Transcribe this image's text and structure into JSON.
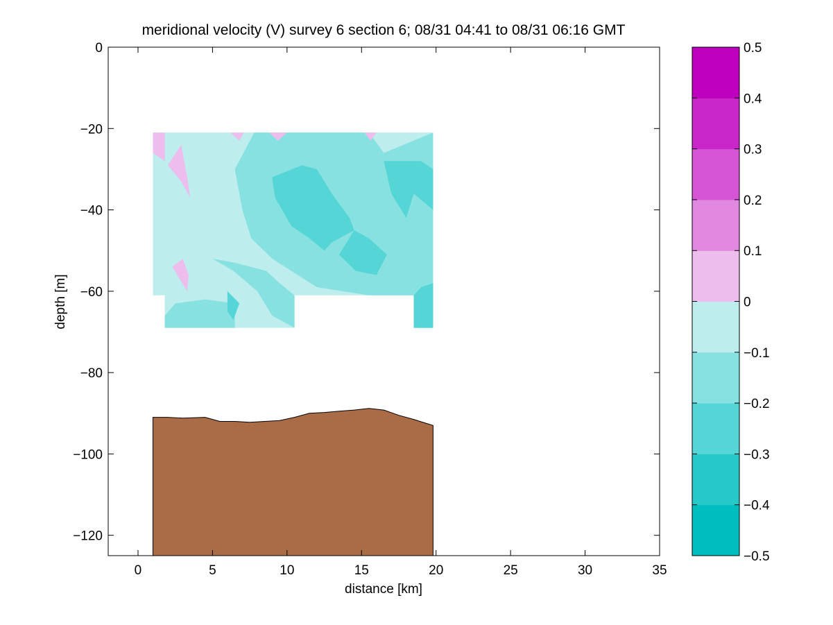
{
  "chart_data": [
    {
      "type": "contour",
      "title": "meridional velocity (V) survey 6 section 6; 08/31 04:41 to 08/31 06:16 GMT",
      "xlabel": "distance [km]",
      "ylabel": "depth [m]",
      "xlim": [
        -2,
        35
      ],
      "ylim": [
        -125,
        0
      ],
      "xticks": [
        0,
        5,
        10,
        15,
        20,
        25,
        30,
        35
      ],
      "yticks": [
        0,
        -20,
        -40,
        -60,
        -80,
        -100,
        -120
      ],
      "data_extent": {
        "x": [
          1.0,
          19.8
        ],
        "y": [
          -69,
          -21
        ]
      },
      "contour_levels": [
        -0.5,
        -0.4,
        -0.3,
        -0.2,
        -0.1,
        0,
        0.1,
        0.2,
        0.3,
        0.4,
        0.5
      ],
      "regions": [
        {
          "name": "velocity-domain",
          "level": "-0.1 to 0",
          "polygon": [
            [
              1.0,
              -21
            ],
            [
              19.8,
              -21
            ],
            [
              19.8,
              -69
            ],
            [
              18.5,
              -69
            ],
            [
              18.5,
              -61
            ],
            [
              10.5,
              -61
            ],
            [
              10.5,
              -69
            ],
            [
              1.8,
              -69
            ],
            [
              1.8,
              -61
            ],
            [
              1.0,
              -61
            ]
          ]
        },
        {
          "name": "band-a",
          "level": "-0.2 to -0.1",
          "polygon": [
            [
              7.8,
              -21
            ],
            [
              15.5,
              -21
            ],
            [
              16.5,
              -26
            ],
            [
              19.8,
              -21
            ],
            [
              19.8,
              -69
            ],
            [
              18.5,
              -69
            ],
            [
              18.5,
              -61
            ],
            [
              15.5,
              -61
            ],
            [
              12.0,
              -59
            ],
            [
              9.0,
              -52
            ],
            [
              7.6,
              -47
            ],
            [
              7.0,
              -40
            ],
            [
              6.5,
              -30
            ]
          ]
        },
        {
          "name": "band-b",
          "level": "-0.2 to -0.1",
          "polygon": [
            [
              5.0,
              -52
            ],
            [
              6.4,
              -55
            ],
            [
              8.0,
              -60
            ],
            [
              9.0,
              -66
            ],
            [
              10.5,
              -69
            ],
            [
              10.5,
              -61
            ],
            [
              9.5,
              -58
            ],
            [
              8.6,
              -55
            ],
            [
              6.5,
              -53
            ]
          ]
        },
        {
          "name": "band-c",
          "level": "-0.2 to -0.1",
          "polygon": [
            [
              1.8,
              -66
            ],
            [
              2.5,
              -63
            ],
            [
              4.5,
              -62
            ],
            [
              6.5,
              -63
            ],
            [
              6.5,
              -69
            ],
            [
              1.8,
              -69
            ]
          ]
        },
        {
          "name": "core-a",
          "level": "-0.3 to -0.2",
          "polygon": [
            [
              9.0,
              -32
            ],
            [
              11.0,
              -29
            ],
            [
              12.0,
              -30
            ],
            [
              13.0,
              -36
            ],
            [
              14.2,
              -42
            ],
            [
              14.5,
              -45
            ],
            [
              13.0,
              -48
            ],
            [
              12.5,
              -50
            ],
            [
              11.5,
              -47
            ],
            [
              10.3,
              -44
            ],
            [
              9.2,
              -37
            ]
          ]
        },
        {
          "name": "core-b",
          "level": "-0.3 to -0.2",
          "polygon": [
            [
              14.5,
              -45
            ],
            [
              15.5,
              -47
            ],
            [
              16.7,
              -51
            ],
            [
              16.0,
              -56
            ],
            [
              14.6,
              -55
            ],
            [
              13.5,
              -51
            ]
          ]
        },
        {
          "name": "core-c",
          "level": "-0.3 to -0.2",
          "polygon": [
            [
              16.5,
              -28
            ],
            [
              19.0,
              -28
            ],
            [
              19.8,
              -30
            ],
            [
              19.8,
              -40
            ],
            [
              18.5,
              -36
            ],
            [
              18.0,
              -42
            ],
            [
              17.0,
              -36
            ]
          ]
        },
        {
          "name": "core-d",
          "level": "-0.3 to -0.2",
          "polygon": [
            [
              18.5,
              -61
            ],
            [
              19.0,
              -59
            ],
            [
              19.8,
              -58
            ],
            [
              19.8,
              -69
            ],
            [
              18.5,
              -69
            ]
          ]
        },
        {
          "name": "core-e",
          "level": "-0.3 to -0.2",
          "polygon": [
            [
              6.0,
              -60
            ],
            [
              6.8,
              -63
            ],
            [
              6.4,
              -67
            ],
            [
              6.0,
              -65
            ]
          ]
        },
        {
          "name": "pos-a",
          "level": "0 to 0.1",
          "polygon": [
            [
              1.0,
              -21
            ],
            [
              1.8,
              -21
            ],
            [
              1.8,
              -28
            ],
            [
              1.0,
              -26
            ]
          ]
        },
        {
          "name": "pos-b",
          "level": "0 to 0.1",
          "polygon": [
            [
              2.0,
              -29
            ],
            [
              2.9,
              -24
            ],
            [
              3.3,
              -32
            ],
            [
              3.5,
              -37
            ],
            [
              2.9,
              -33
            ]
          ]
        },
        {
          "name": "pos-c",
          "level": "0 to 0.1",
          "polygon": [
            [
              2.3,
              -54
            ],
            [
              3.0,
              -52
            ],
            [
              3.4,
              -56
            ],
            [
              3.3,
              -60
            ],
            [
              2.8,
              -57
            ]
          ]
        },
        {
          "name": "pos-d",
          "level": "0 to 0.1",
          "polygon": [
            [
              6.2,
              -21
            ],
            [
              7.1,
              -21
            ],
            [
              6.8,
              -23
            ]
          ]
        },
        {
          "name": "pos-e",
          "level": "0 to 0.1",
          "polygon": [
            [
              8.8,
              -21
            ],
            [
              10.0,
              -21
            ],
            [
              9.4,
              -23
            ]
          ]
        },
        {
          "name": "pos-f",
          "level": "0 to 0.1",
          "polygon": [
            [
              15.2,
              -21
            ],
            [
              16.0,
              -21
            ],
            [
              15.6,
              -23
            ]
          ]
        }
      ],
      "bathymetry": {
        "x": [
          1.0,
          2.0,
          3.0,
          4.5,
          5.5,
          6.5,
          7.5,
          8.5,
          9.5,
          10.5,
          11.5,
          12.5,
          13.5,
          14.5,
          15.5,
          16.5,
          17.5,
          18.5,
          19.8
        ],
        "y": [
          -91.0,
          -91.0,
          -91.2,
          -91.0,
          -92.0,
          -92.0,
          -92.2,
          -92.0,
          -91.8,
          -91.0,
          -90.0,
          -89.8,
          -89.5,
          -89.2,
          -88.8,
          -89.2,
          -90.5,
          -91.5,
          -93.0
        ],
        "bottom": -125,
        "color": "#aa6b47"
      },
      "colorbar": {
        "levels": [
          -0.5,
          -0.4,
          -0.3,
          -0.2,
          -0.1,
          0,
          0.1,
          0.2,
          0.3,
          0.4,
          0.5
        ],
        "tick_labels": [
          "−0.5",
          "−0.4",
          "−0.3",
          "−0.2",
          "−0.1",
          "0",
          "0.1",
          "0.2",
          "0.3",
          "0.4",
          "0.5"
        ],
        "colors": [
          "#00bebe",
          "#26c8c8",
          "#55d5d5",
          "#88e1e1",
          "#bdeded",
          "#edbded",
          "#e188e1",
          "#d555d5",
          "#c826c8",
          "#be00be"
        ]
      }
    }
  ]
}
